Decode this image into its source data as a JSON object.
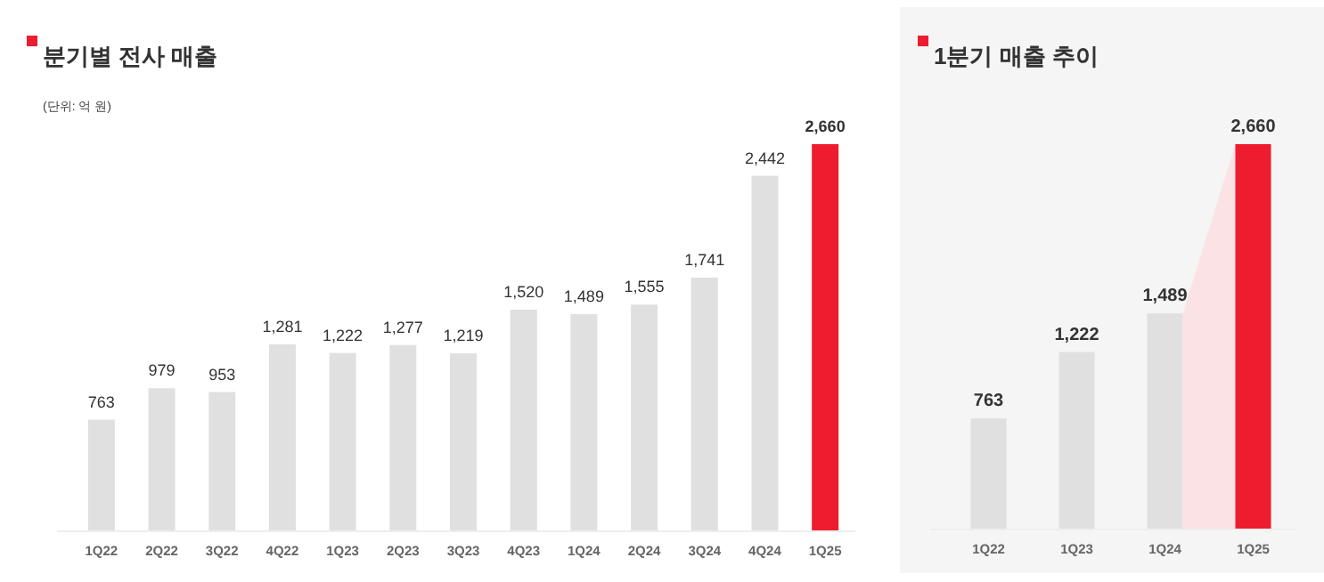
{
  "chart_data": [
    {
      "type": "bar",
      "title": "분기별 전사 매출",
      "annotations": [
        "(단위: 억 원)"
      ],
      "categories": [
        "1Q22",
        "2Q22",
        "3Q22",
        "4Q22",
        "1Q23",
        "2Q23",
        "3Q23",
        "4Q23",
        "1Q24",
        "2Q24",
        "3Q24",
        "4Q24",
        "1Q25"
      ],
      "values": [
        763,
        979,
        953,
        1281,
        1222,
        1277,
        1219,
        1520,
        1489,
        1555,
        1741,
        2442,
        2660
      ],
      "colors": [
        "#e0e0e0",
        "#e0e0e0",
        "#e0e0e0",
        "#e0e0e0",
        "#e0e0e0",
        "#e0e0e0",
        "#e0e0e0",
        "#e0e0e0",
        "#e0e0e0",
        "#e0e0e0",
        "#e0e0e0",
        "#e0e0e0",
        "#ed1c2e"
      ],
      "value_labels": [
        "763",
        "979",
        "953",
        "1,281",
        "1,222",
        "1,277",
        "1,219",
        "1,520",
        "1,489",
        "1,555",
        "1,741",
        "2,442",
        "2,660"
      ]
    },
    {
      "type": "bar",
      "title": "1분기 매출 추이",
      "categories": [
        "1Q22",
        "1Q23",
        "1Q24",
        "1Q25"
      ],
      "values": [
        763,
        1222,
        1489,
        2660
      ],
      "colors": [
        "#e0e0e0",
        "#e0e0e0",
        "#e0e0e0",
        "#ed1c2e"
      ],
      "value_labels": [
        "763",
        "1,222",
        "1,489",
        "2,660"
      ]
    }
  ]
}
